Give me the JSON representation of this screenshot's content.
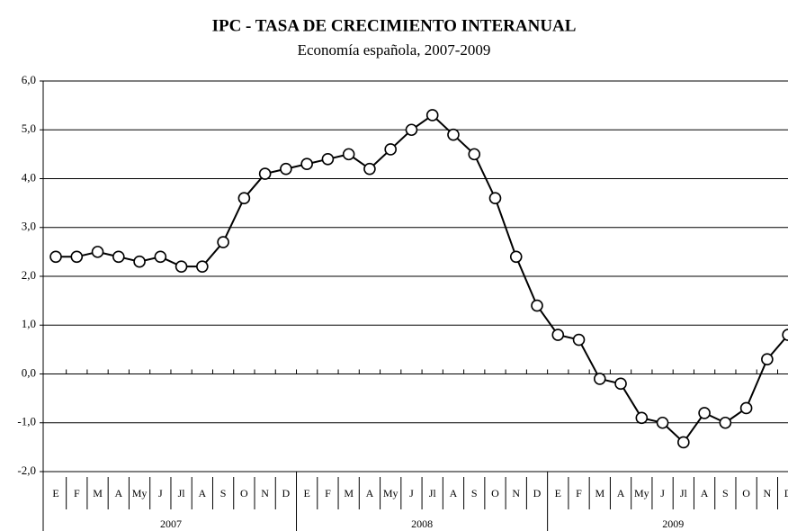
{
  "chart_data": {
    "type": "line",
    "title": "IPC - TASA DE CRECIMIENTO INTERANUAL",
    "subtitle": "Economía española, 2007-2009",
    "categories": [
      "E",
      "F",
      "M",
      "A",
      "My",
      "J",
      "Jl",
      "A",
      "S",
      "O",
      "N",
      "D",
      "E",
      "F",
      "M",
      "A",
      "My",
      "J",
      "Jl",
      "A",
      "S",
      "O",
      "N",
      "D",
      "E",
      "F",
      "M",
      "A",
      "My",
      "J",
      "Jl",
      "A",
      "S",
      "O",
      "N",
      "D"
    ],
    "years": [
      "2007",
      "2008",
      "2009"
    ],
    "series": [
      {
        "color": "#000000",
        "values": [
          2.4,
          2.4,
          2.5,
          2.4,
          2.3,
          2.4,
          2.2,
          2.2,
          2.7,
          3.6,
          4.1,
          4.2,
          4.3,
          4.4,
          4.5,
          4.2,
          4.6,
          5.0,
          5.3,
          4.9,
          4.5,
          3.6,
          2.4,
          1.4,
          0.8,
          0.7,
          -0.1,
          -0.2,
          -0.9,
          -1.0,
          -1.4,
          -0.8,
          -1.0,
          -0.7,
          0.3,
          0.8
        ]
      }
    ],
    "ylim": [
      -2,
      6
    ],
    "yticks": [
      {
        "value": -2,
        "label": "-2,0"
      },
      {
        "value": -1,
        "label": "-1,0"
      },
      {
        "value": 0,
        "label": "0,0"
      },
      {
        "value": 1,
        "label": "1,0"
      },
      {
        "value": 2,
        "label": "2,0"
      },
      {
        "value": 3,
        "label": "3,0"
      },
      {
        "value": 4,
        "label": "4,0"
      },
      {
        "value": 5,
        "label": "5,0"
      },
      {
        "value": 6,
        "label": "6,0"
      }
    ],
    "grid": true
  }
}
